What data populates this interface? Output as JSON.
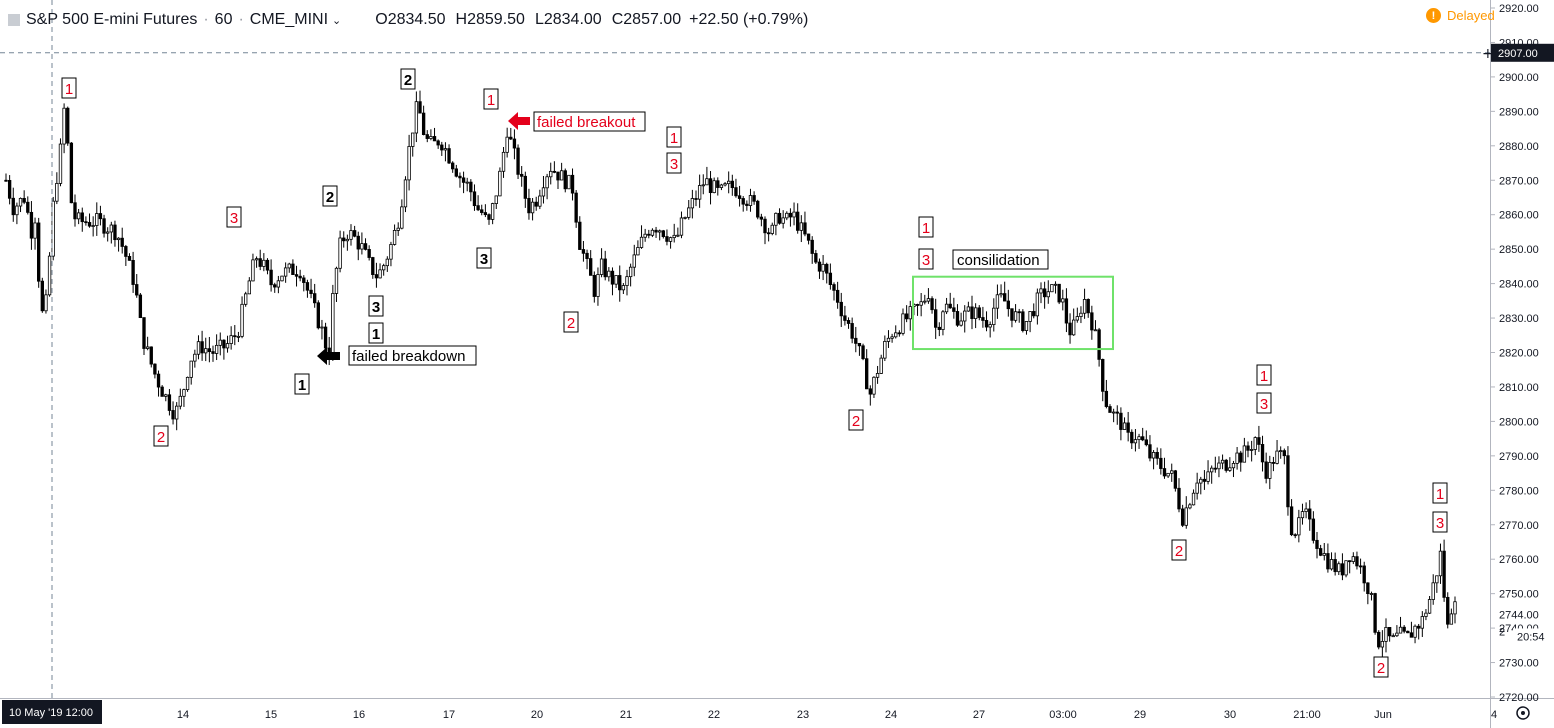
{
  "header": {
    "symbol": "S&P 500 E-mini Futures",
    "interval": "60",
    "exchange": "CME_MINI",
    "open_label": "O",
    "open": "2834.50",
    "high_label": "H",
    "high": "2859.50",
    "low_label": "L",
    "low": "2834.00",
    "close_label": "C",
    "close": "2857.00",
    "change": "+22.50 (+0.79%)",
    "delayed": "Delayed",
    "delayed_icon": "!"
  },
  "colors": {
    "red": "#e4001b",
    "black": "#000000",
    "green": "#6fe26a",
    "delayed": "#ff9800",
    "axis_label_bg": "#131722"
  },
  "chart_data": {
    "type": "candlestick",
    "ylim": [
      2717,
      2923
    ],
    "yticks": [
      2720,
      2730,
      2740,
      2750,
      2760,
      2770,
      2780,
      2790,
      2800,
      2810,
      2820,
      2830,
      2840,
      2850,
      2860,
      2870,
      2880,
      2890,
      2900,
      2910,
      2920
    ],
    "crosshair_price": "2907.00",
    "price_label_2744": "2744.00",
    "countdown": "20:54",
    "countdown_partial": "2",
    "xticks": [
      "14",
      "15",
      "16",
      "17",
      "20",
      "21",
      "22",
      "23",
      "24",
      "27",
      "03:00",
      "29",
      "30",
      "21:00",
      "Jun",
      "4"
    ],
    "crosshair_time": "10 May '19   12:00",
    "anchors": [
      [
        0,
        2870
      ],
      [
        2,
        2862
      ],
      [
        5,
        2865
      ],
      [
        7,
        2855
      ],
      [
        8,
        2860
      ],
      [
        9,
        2840
      ],
      [
        10,
        2830
      ],
      [
        11,
        2835
      ],
      [
        13,
        2865
      ],
      [
        15,
        2880
      ],
      [
        16,
        2893
      ],
      [
        18,
        2860
      ],
      [
        20,
        2858
      ],
      [
        25,
        2858
      ],
      [
        30,
        2855
      ],
      [
        32,
        2850
      ],
      [
        35,
        2840
      ],
      [
        37,
        2825
      ],
      [
        40,
        2815
      ],
      [
        42,
        2810
      ],
      [
        44,
        2806
      ],
      [
        46,
        2802
      ],
      [
        48,
        2808
      ],
      [
        50,
        2818
      ],
      [
        53,
        2822
      ],
      [
        56,
        2820
      ],
      [
        60,
        2822
      ],
      [
        63,
        2826
      ],
      [
        66,
        2840
      ],
      [
        68,
        2848
      ],
      [
        70,
        2845
      ],
      [
        72,
        2840
      ],
      [
        75,
        2843
      ],
      [
        78,
        2844
      ],
      [
        80,
        2844
      ],
      [
        82,
        2838
      ],
      [
        84,
        2832
      ],
      [
        86,
        2826
      ],
      [
        87,
        2822
      ],
      [
        88,
        2820
      ],
      [
        89,
        2838
      ],
      [
        91,
        2852
      ],
      [
        93,
        2855
      ],
      [
        95,
        2853
      ],
      [
        97,
        2850
      ],
      [
        99,
        2845
      ],
      [
        101,
        2842
      ],
      [
        103,
        2846
      ],
      [
        105,
        2852
      ],
      [
        107,
        2860
      ],
      [
        109,
        2875
      ],
      [
        111,
        2888
      ],
      [
        112,
        2892
      ],
      [
        114,
        2882
      ],
      [
        116,
        2880
      ],
      [
        118,
        2882
      ],
      [
        120,
        2878
      ],
      [
        122,
        2874
      ],
      [
        124,
        2870
      ],
      [
        126,
        2868
      ],
      [
        128,
        2862
      ],
      [
        130,
        2860
      ],
      [
        131,
        2856
      ],
      [
        133,
        2865
      ],
      [
        135,
        2875
      ],
      [
        136,
        2886
      ],
      [
        138,
        2878
      ],
      [
        140,
        2870
      ],
      [
        142,
        2862
      ],
      [
        144,
        2864
      ],
      [
        146,
        2870
      ],
      [
        148,
        2874
      ],
      [
        150,
        2872
      ],
      [
        152,
        2870
      ],
      [
        154,
        2868
      ],
      [
        156,
        2852
      ],
      [
        158,
        2845
      ],
      [
        160,
        2838
      ],
      [
        162,
        2845
      ],
      [
        164,
        2842
      ],
      [
        166,
        2840
      ],
      [
        168,
        2838
      ],
      [
        170,
        2845
      ],
      [
        172,
        2850
      ],
      [
        174,
        2855
      ],
      [
        176,
        2857
      ],
      [
        178,
        2856
      ],
      [
        180,
        2854
      ],
      [
        182,
        2852
      ],
      [
        184,
        2858
      ],
      [
        186,
        2862
      ],
      [
        188,
        2866
      ],
      [
        190,
        2870
      ],
      [
        192,
        2868
      ],
      [
        194,
        2866
      ],
      [
        196,
        2868
      ],
      [
        198,
        2868
      ],
      [
        200,
        2866
      ],
      [
        202,
        2864
      ],
      [
        204,
        2862
      ],
      [
        206,
        2858
      ],
      [
        208,
        2854
      ],
      [
        210,
        2860
      ],
      [
        212,
        2858
      ],
      [
        214,
        2860
      ],
      [
        216,
        2856
      ],
      [
        218,
        2852
      ],
      [
        220,
        2846
      ],
      [
        222,
        2845
      ],
      [
        224,
        2840
      ],
      [
        226,
        2836
      ],
      [
        228,
        2830
      ],
      [
        230,
        2826
      ],
      [
        232,
        2820
      ],
      [
        234,
        2812
      ],
      [
        235,
        2808
      ],
      [
        237,
        2815
      ],
      [
        239,
        2822
      ],
      [
        241,
        2826
      ],
      [
        243,
        2828
      ],
      [
        245,
        2830
      ],
      [
        247,
        2832
      ],
      [
        249,
        2834
      ],
      [
        250,
        2836
      ],
      [
        251,
        2838
      ],
      [
        253,
        2826
      ],
      [
        255,
        2834
      ],
      [
        257,
        2832
      ],
      [
        259,
        2830
      ],
      [
        261,
        2831
      ],
      [
        263,
        2832
      ],
      [
        265,
        2830
      ],
      [
        267,
        2829
      ],
      [
        269,
        2834
      ],
      [
        271,
        2836
      ],
      [
        273,
        2832
      ],
      [
        275,
        2830
      ],
      [
        277,
        2828
      ],
      [
        279,
        2832
      ],
      [
        281,
        2836
      ],
      [
        283,
        2838
      ],
      [
        285,
        2838
      ],
      [
        287,
        2836
      ],
      [
        289,
        2826
      ],
      [
        291,
        2828
      ],
      [
        293,
        2836
      ],
      [
        295,
        2830
      ],
      [
        296,
        2826
      ],
      [
        297,
        2820
      ],
      [
        298,
        2812
      ],
      [
        299,
        2806
      ],
      [
        301,
        2802
      ],
      [
        303,
        2800
      ],
      [
        305,
        2795
      ],
      [
        307,
        2796
      ],
      [
        309,
        2794
      ],
      [
        311,
        2790
      ],
      [
        313,
        2788
      ],
      [
        315,
        2786
      ],
      [
        317,
        2784
      ],
      [
        319,
        2776
      ],
      [
        320,
        2772
      ],
      [
        322,
        2778
      ],
      [
        324,
        2784
      ],
      [
        326,
        2782
      ],
      [
        328,
        2786
      ],
      [
        330,
        2787
      ],
      [
        332,
        2788
      ],
      [
        334,
        2790
      ],
      [
        336,
        2790
      ],
      [
        338,
        2792
      ],
      [
        340,
        2796
      ],
      [
        341,
        2790
      ],
      [
        343,
        2785
      ],
      [
        345,
        2790
      ],
      [
        347,
        2790
      ],
      [
        348,
        2788
      ],
      [
        349,
        2770
      ],
      [
        351,
        2768
      ],
      [
        353,
        2774
      ],
      [
        355,
        2768
      ],
      [
        357,
        2764
      ],
      [
        359,
        2760
      ],
      [
        361,
        2758
      ],
      [
        363,
        2756
      ],
      [
        365,
        2762
      ],
      [
        367,
        2760
      ],
      [
        369,
        2756
      ],
      [
        371,
        2750
      ],
      [
        372,
        2742
      ],
      [
        373,
        2736
      ],
      [
        375,
        2738
      ],
      [
        377,
        2736
      ],
      [
        379,
        2738
      ],
      [
        381,
        2737
      ],
      [
        383,
        2740
      ],
      [
        385,
        2742
      ],
      [
        387,
        2748
      ],
      [
        389,
        2756
      ],
      [
        390,
        2762
      ],
      [
        391,
        2750
      ],
      [
        392,
        2740
      ],
      [
        393,
        2746
      ],
      [
        394,
        2750
      ]
    ],
    "annotations": [
      {
        "labels": [
          "1"
        ],
        "color": "red",
        "ci": 7
      },
      {
        "labels": [
          "2"
        ],
        "color": "red",
        "ci": 43
      },
      {
        "labels": [
          "3"
        ],
        "color": "red",
        "ci": 64
      },
      {
        "labels": [
          "2"
        ],
        "color": "black",
        "ci": 93
      },
      {
        "labels": [
          "1"
        ],
        "color": "black",
        "ci": 84
      },
      {
        "labels": [
          "3"
        ],
        "color": "black",
        "ci": 105
      },
      {
        "labels": [
          "1"
        ],
        "color": "black",
        "ci": 105
      },
      {
        "labels": [
          "2"
        ],
        "color": "black",
        "ci": 113
      },
      {
        "labels": [
          "1"
        ],
        "color": "red",
        "ci": 136
      },
      {
        "labels": [
          "3"
        ],
        "color": "black",
        "ci": 136
      },
      {
        "labels": [
          "2"
        ],
        "color": "red",
        "ci": 160
      },
      {
        "labels": [
          "1"
        ],
        "color": "red",
        "ci": 188
      },
      {
        "labels": [
          "3"
        ],
        "color": "red",
        "ci": 188
      },
      {
        "labels": [
          "2"
        ],
        "color": "red",
        "ci": 238
      },
      {
        "labels": [
          "1"
        ],
        "color": "red",
        "ci": 258
      },
      {
        "labels": [
          "3"
        ],
        "color": "red",
        "ci": 258
      },
      {
        "labels": [
          "2"
        ],
        "color": "red",
        "ci": 330
      },
      {
        "labels": [
          "1"
        ],
        "color": "red",
        "ci": 352
      },
      {
        "labels": [
          "3"
        ],
        "color": "red",
        "ci": 352
      },
      {
        "labels": [
          "2"
        ],
        "color": "red",
        "ci": 383
      },
      {
        "labels": [
          "1"
        ],
        "color": "red",
        "ci": 398
      },
      {
        "labels": [
          "3"
        ],
        "color": "red",
        "ci": 398
      }
    ],
    "text_annotations": [
      {
        "text": "failed breakout",
        "color": "red",
        "arrow": "red"
      },
      {
        "text": "failed breakdown",
        "color": "black",
        "arrow": "black"
      },
      {
        "text": "consilidation",
        "color": "black"
      }
    ],
    "consolidation_box": {
      "price_top": 2842,
      "price_bottom": 2821
    }
  }
}
